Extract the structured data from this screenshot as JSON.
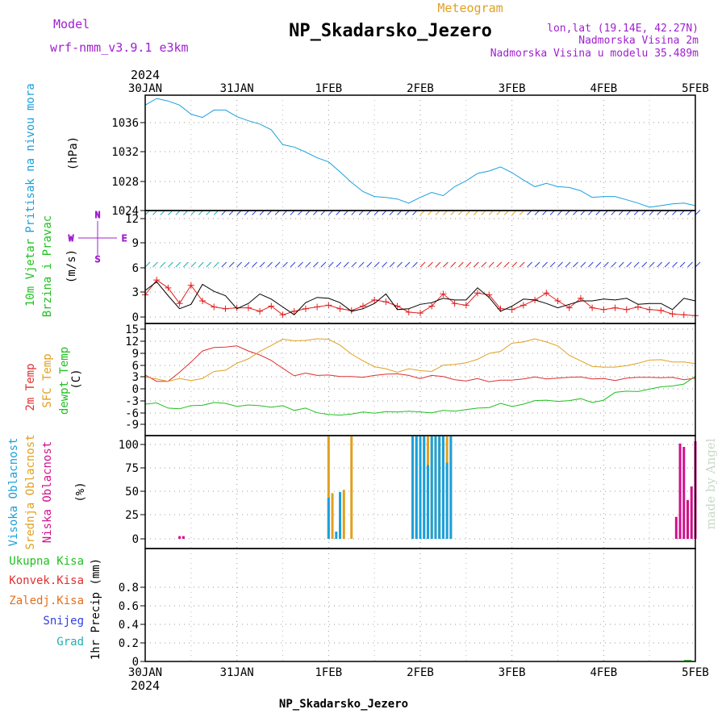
{
  "header": {
    "model_label": "Model",
    "model_name": "wrf-nmm_v3.9.1  e3km",
    "product": "Meteogram",
    "station": "NP_Skadarsko_Jezero",
    "lonlat": "lon,lat (19.14E, 42.27N)",
    "elevation": "Nadmorska Visina 2m",
    "model_elevation": "Nadmorska Visina u modelu 35.489m",
    "footer_station": "NP_Skadarsko_Jezero",
    "credit": "made by Angel"
  },
  "colors": {
    "pressure": "#1aa0dc",
    "speed": "#e02020",
    "gust": "#000000",
    "t2m": "#e03030",
    "sfc": "#e0a020",
    "dew": "#20c020",
    "cloud_high": "#1aa0dc",
    "cloud_mid": "#e0a020",
    "cloud_low": "#d0108c",
    "wind_hi": "#3040e0",
    "wind_label": "#a020d0",
    "precip_total": "#20c020",
    "precip_conv": "#e03030",
    "precip_frz": "#e07020",
    "precip_snow": "#3040e0",
    "precip_grad": "#20b0b0"
  },
  "chart_data": {
    "type": "line",
    "x_axis": {
      "year": "2024",
      "ticks": [
        "30JAN",
        "31JAN",
        "1FEB",
        "2FEB",
        "3FEB",
        "4FEB",
        "5FEB"
      ],
      "range_hours": [
        0,
        144
      ]
    },
    "panels": [
      {
        "id": "pressure",
        "ylabel_left": "Pritisak na nivou mora",
        "unit": "(hPa)",
        "ylim": [
          1024,
          1038
        ],
        "yticks": [
          "1036",
          "1032",
          "1028",
          "1024"
        ],
        "series": [
          {
            "x": [
              0,
              3,
              6,
              9,
              12,
              15,
              18,
              21,
              24,
              27,
              30,
              33,
              36,
              39,
              42,
              45,
              48,
              51,
              54,
              57,
              60,
              63,
              66,
              69,
              72,
              75,
              78,
              81,
              84,
              87,
              90,
              93,
              96,
              99,
              102,
              105,
              108,
              111,
              114,
              117,
              120,
              123,
              126,
              129,
              132,
              135,
              138,
              141,
              144
            ],
            "y": [
              1036.8,
              1037.6,
              1037.3,
              1036.8,
              1035.7,
              1035.3,
              1036.2,
              1036.2,
              1035.4,
              1034.9,
              1034.5,
              1033.8,
              1032.0,
              1031.7,
              1031.1,
              1030.4,
              1029.9,
              1028.7,
              1027.4,
              1026.3,
              1025.7,
              1025.6,
              1025.4,
              1024.9,
              1025.6,
              1026.2,
              1025.8,
              1026.9,
              1027.6,
              1028.5,
              1028.8,
              1029.3,
              1028.6,
              1027.7,
              1026.9,
              1027.3,
              1026.9,
              1026.8,
              1026.4,
              1025.6,
              1025.7,
              1025.7,
              1025.3,
              1024.9,
              1024.4,
              1024.6,
              1024.8,
              1024.9,
              1024.6
            ]
          }
        ]
      },
      {
        "id": "wind",
        "ylabel_left": [
          "10m Vjetar",
          "Brzina i Pravac"
        ],
        "unit": "(m/s)",
        "compass": {
          "n": "N",
          "s": "S",
          "e": "E",
          "w": "W"
        },
        "ylim": [
          -0.5,
          12.5
        ],
        "yticks": [
          "12",
          "9",
          "6",
          "3",
          "0"
        ],
        "series": [
          {
            "name": "speed",
            "x": [
              0,
              3,
              6,
              9,
              12,
              15,
              18,
              21,
              24,
              27,
              30,
              33,
              36,
              39,
              42,
              45,
              48,
              51,
              54,
              57,
              60,
              63,
              66,
              69,
              72,
              75,
              78,
              81,
              84,
              87,
              90,
              93,
              96,
              99,
              102,
              105,
              108,
              111,
              114,
              117,
              120,
              123,
              126,
              129,
              132,
              135,
              138,
              141,
              144
            ],
            "y": [
              2.8,
              4.5,
              3.6,
              1.8,
              3.9,
              2.1,
              1.4,
              1.2,
              1.3,
              1.3,
              0.9,
              1.5,
              0.5,
              0.9,
              1.2,
              1.4,
              1.6,
              1.2,
              1.0,
              1.5,
              2.2,
              2.0,
              1.5,
              0.8,
              0.7,
              1.5,
              2.9,
              1.8,
              1.6,
              3.0,
              2.8,
              1.2,
              1.1,
              1.6,
              2.2,
              3.0,
              2.1,
              1.3,
              2.4,
              1.3,
              1.1,
              1.3,
              1.1,
              1.4,
              1.1,
              1.0,
              0.6,
              0.5,
              0.4
            ]
          },
          {
            "name": "gust",
            "x": [
              0,
              3,
              6,
              9,
              12,
              15,
              18,
              21,
              24,
              27,
              30,
              33,
              36,
              39,
              42,
              45,
              48,
              51,
              54,
              57,
              60,
              63,
              66,
              69,
              72,
              75,
              78,
              81,
              84,
              87,
              90,
              93,
              96,
              99,
              102,
              105,
              108,
              111,
              114,
              117,
              120,
              123,
              126,
              129,
              132,
              135,
              138,
              141,
              144
            ],
            "y": [
              3.3,
              4.3,
              2.7,
              1.2,
              1.7,
              4.0,
              3.2,
              2.7,
              1.2,
              1.8,
              2.9,
              2.3,
              1.4,
              0.5,
              1.9,
              2.5,
              2.4,
              1.9,
              0.9,
              1.2,
              1.8,
              2.9,
              1.1,
              1.2,
              1.7,
              1.9,
              2.4,
              2.2,
              2.2,
              3.6,
              2.5,
              0.9,
              1.5,
              2.3,
              2.2,
              1.8,
              1.3,
              1.7,
              2.1,
              2.1,
              2.3,
              2.2,
              2.4,
              1.7,
              1.8,
              1.8,
              1.1,
              2.4,
              2.1
            ]
          }
        ]
      },
      {
        "id": "temperature",
        "ylabel_left": [
          "2m Temp",
          "SFC Temp",
          "dewpt Temp"
        ],
        "unit": "(C)",
        "ylim": [
          -12,
          16.5
        ],
        "yticks": [
          "15",
          "12",
          "9",
          "6",
          "3",
          "0",
          "-3",
          "-6",
          "-9"
        ],
        "series": [
          {
            "name": "2m Temp",
            "x": [
              0,
              3,
              6,
              9,
              12,
              15,
              18,
              21,
              24,
              27,
              30,
              33,
              36,
              39,
              42,
              45,
              48,
              51,
              54,
              57,
              60,
              63,
              66,
              69,
              72,
              75,
              78,
              81,
              84,
              87,
              90,
              93,
              96,
              99,
              102,
              105,
              108,
              111,
              114,
              117,
              120,
              123,
              126,
              129,
              132,
              135,
              138,
              141,
              144
            ],
            "y": [
              3.4,
              1.8,
              1.8,
              4.1,
              6.7,
              9.5,
              10.4,
              10.5,
              10.8,
              9.5,
              8.5,
              7.1,
              5.1,
              3.2,
              3.9,
              3.3,
              3.4,
              3.0,
              3.0,
              2.8,
              3.3,
              3.6,
              3.7,
              3.3,
              2.5,
              3.3,
              3.0,
              2.2,
              1.9,
              2.5,
              1.7,
              2.1,
              2.1,
              2.4,
              2.9,
              2.4,
              2.6,
              2.8,
              2.9,
              2.4,
              2.5,
              2.0,
              2.6,
              2.8,
              2.8,
              2.7,
              2.8,
              2.2,
              2.6
            ]
          },
          {
            "name": "SFC Temp",
            "x": [
              0,
              3,
              6,
              9,
              12,
              15,
              18,
              21,
              24,
              27,
              30,
              33,
              36,
              39,
              42,
              45,
              48,
              51,
              54,
              57,
              60,
              63,
              66,
              69,
              72,
              75,
              78,
              81,
              84,
              87,
              90,
              93,
              96,
              99,
              102,
              105,
              108,
              111,
              114,
              117,
              120,
              123,
              126,
              129,
              132,
              135,
              138,
              141,
              144
            ],
            "y": [
              2.9,
              2.4,
              1.8,
              2.5,
              2.0,
              2.5,
              4.3,
              4.6,
              6.4,
              7.5,
              9.4,
              10.9,
              12.5,
              12.1,
              12.2,
              12.6,
              12.5,
              11.0,
              8.7,
              7.0,
              5.5,
              5.0,
              4.1,
              5.0,
              4.5,
              4.3,
              5.9,
              6.1,
              6.5,
              7.4,
              8.9,
              9.4,
              11.5,
              11.8,
              12.6,
              11.8,
              10.8,
              8.4,
              7.0,
              5.6,
              5.4,
              5.4,
              5.8,
              6.4,
              7.2,
              7.3,
              6.7,
              6.7,
              6.3
            ]
          },
          {
            "name": "dewpt Temp",
            "x": [
              0,
              3,
              6,
              9,
              12,
              15,
              18,
              21,
              24,
              27,
              30,
              33,
              36,
              39,
              42,
              45,
              48,
              51,
              54,
              57,
              60,
              63,
              66,
              69,
              72,
              75,
              78,
              81,
              84,
              87,
              90,
              93,
              96,
              99,
              102,
              105,
              108,
              111,
              114,
              117,
              120,
              123,
              126,
              129,
              132,
              135,
              138,
              141,
              144
            ],
            "y": [
              -4.0,
              -3.7,
              -5.0,
              -5.2,
              -4.4,
              -4.3,
              -3.6,
              -3.8,
              -4.6,
              -4.2,
              -4.4,
              -4.8,
              -4.4,
              -5.6,
              -5.0,
              -6.2,
              -6.6,
              -6.8,
              -6.5,
              -6.0,
              -6.3,
              -5.9,
              -6.0,
              -5.8,
              -6.0,
              -6.2,
              -5.6,
              -5.8,
              -5.4,
              -5.0,
              -4.9,
              -3.8,
              -4.6,
              -4.0,
              -3.1,
              -3.0,
              -3.3,
              -3.1,
              -2.6,
              -3.6,
              -3.0,
              -1.0,
              -0.7,
              -0.8,
              -0.2,
              0.4,
              0.6,
              1.1,
              3.1
            ]
          }
        ]
      },
      {
        "id": "cloud",
        "ylabel_left": [
          "Visoka Oblacnost",
          "Srednja Oblacnost",
          "Niska Oblacnost"
        ],
        "unit": "(%)",
        "ylim": [
          0,
          100
        ],
        "yticks": [
          "100",
          "75",
          "50",
          "25",
          "0"
        ],
        "bars": [
          {
            "name": "Niska Oblacnost",
            "x": [
              9,
              10,
              11,
              139,
              140,
              141,
              142,
              143,
              144
            ],
            "y": [
              11,
              11,
              4,
              28,
              93,
              90,
              43,
              55,
              95
            ]
          },
          {
            "name": "Srednja Oblacnost",
            "x": [
              48,
              49,
              51,
              52,
              54,
              70,
              71,
              72,
              73,
              74,
              75,
              76,
              77,
              78,
              79,
              80
            ],
            "y": [
              100,
              49,
              22,
              52,
              100,
              100,
              100,
              100,
              100,
              100,
              100,
              100,
              100,
              100,
              100,
              100
            ]
          },
          {
            "name": "Visoka Oblacnost",
            "x": [
              48,
              50,
              51,
              70,
              71,
              72,
              73,
              74,
              75,
              76,
              77,
              78,
              79,
              80
            ],
            "y": [
              45,
              15,
              50,
              100,
              100,
              100,
              100,
              74,
              100,
              100,
              100,
              100,
              76,
              100
            ]
          }
        ]
      },
      {
        "id": "precip",
        "ylabel_left": [
          "Ukupna Kisa",
          "Konvek.Kisa",
          "Zaledj.Kisa",
          "Snijeg",
          "Grad"
        ],
        "unit": "1hr Precip (mm)",
        "ylim": [
          0,
          1.0
        ],
        "yticks": [
          "0.8",
          "0.6",
          "0.4",
          "0.2",
          "0"
        ],
        "series": [
          {
            "name": "Ukupna Kisa",
            "x": [
              141,
              142,
              143
            ],
            "y": [
              0.01,
              0.01,
              0.01
            ]
          }
        ]
      }
    ]
  }
}
